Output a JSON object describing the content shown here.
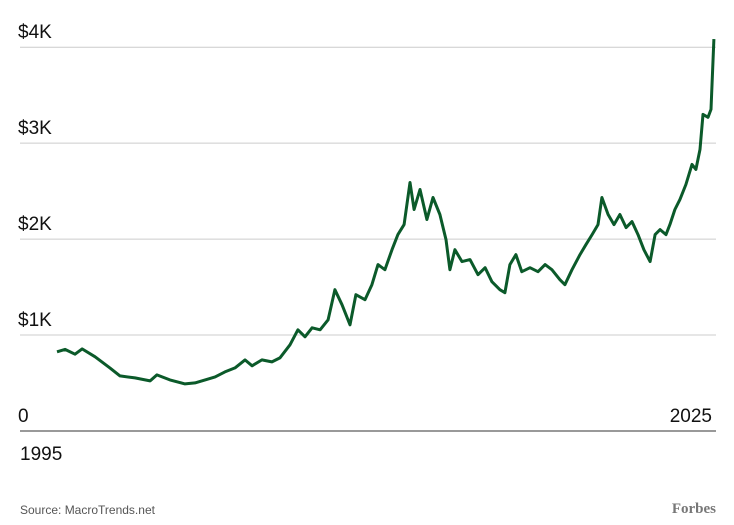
{
  "chart_data": {
    "type": "line",
    "x": [
      1996.62,
      1996.97,
      1997.41,
      1997.72,
      1998.29,
      1998.94,
      1999.38,
      2000.04,
      2000.7,
      2001.0,
      2001.57,
      2002.23,
      2002.67,
      2003.11,
      2003.55,
      2003.98,
      2004.42,
      2004.86,
      2005.17,
      2005.6,
      2006.04,
      2006.39,
      2006.83,
      2007.18,
      2007.49,
      2007.8,
      2008.15,
      2008.5,
      2008.8,
      2009.11,
      2009.46,
      2009.72,
      2010.12,
      2010.42,
      2010.69,
      2010.99,
      2011.3,
      2011.56,
      2011.83,
      2012.09,
      2012.27,
      2012.53,
      2012.83,
      2013.1,
      2013.4,
      2013.67,
      2013.84,
      2014.06,
      2014.37,
      2014.72,
      2015.07,
      2015.38,
      2015.68,
      2016.03,
      2016.25,
      2016.47,
      2016.73,
      2016.99,
      2017.35,
      2017.7,
      2018.01,
      2018.31,
      2018.66,
      2018.88,
      2019.19,
      2019.54,
      2019.8,
      2020.07,
      2020.33,
      2020.5,
      2020.77,
      2021.03,
      2021.29,
      2021.56,
      2021.82,
      2022.08,
      2022.34,
      2022.61,
      2022.83,
      2023.05,
      2023.31,
      2023.48,
      2023.7,
      2023.92,
      2024.18,
      2024.45,
      2024.62,
      2024.8,
      2024.93,
      2025.15,
      2025.28,
      2025.41
    ],
    "series": [
      {
        "color": "#0b5a2a",
        "values": [
          825,
          850,
          800,
          856,
          773,
          658,
          574,
          553,
          522,
          585,
          533,
          491,
          501,
          533,
          564,
          616,
          658,
          741,
          679,
          741,
          720,
          762,
          898,
          1055,
          982,
          1076,
          1055,
          1159,
          1473,
          1316,
          1107,
          1420,
          1368,
          1525,
          1734,
          1681,
          1890,
          2047,
          2151,
          2590,
          2308,
          2517,
          2204,
          2433,
          2256,
          1995,
          1681,
          1890,
          1765,
          1786,
          1629,
          1702,
          1556,
          1473,
          1441,
          1734,
          1838,
          1660,
          1702,
          1660,
          1734,
          1681,
          1577,
          1525,
          1681,
          1838,
          1942,
          2047,
          2151,
          2433,
          2256,
          2151,
          2256,
          2120,
          2182,
          2047,
          1890,
          1765,
          2047,
          2099,
          2047,
          2151,
          2308,
          2412,
          2569,
          2778,
          2726,
          2935,
          3300,
          3269,
          3352,
          4084
        ]
      }
    ],
    "xlim": [
      1995,
      2025.5
    ],
    "xticks": [
      1995,
      2025
    ],
    "ylim": [
      0,
      4200
    ],
    "yticks": [
      0,
      {
        "value": 1000,
        "label": "$1K"
      },
      {
        "value": 2000,
        "label": "$2K"
      },
      {
        "value": 3000,
        "label": "$3K"
      },
      {
        "value": 4000,
        "label": "$4K"
      }
    ],
    "grid": true,
    "source": "Source: MacroTrends.net",
    "brand": "Forbes"
  }
}
